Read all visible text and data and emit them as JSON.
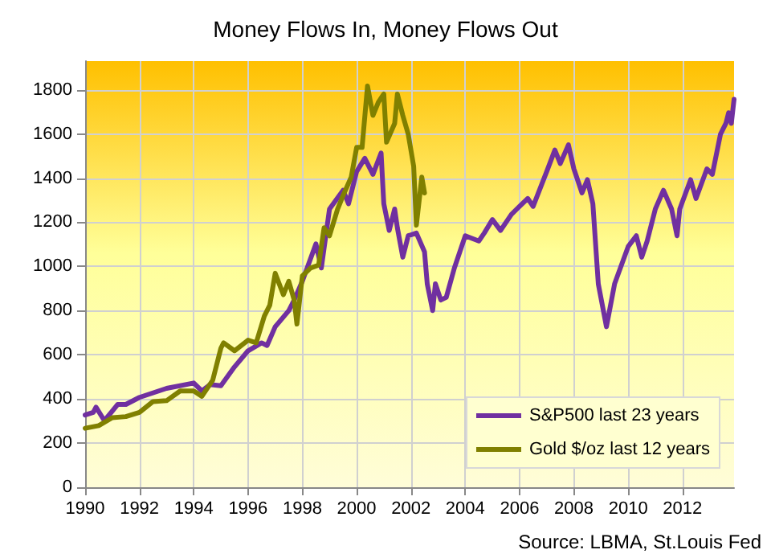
{
  "chart_data": {
    "type": "line",
    "title": "Money Flows In, Money Flows Out",
    "annotations": [
      "Source: LBMA, St.Louis Fed"
    ],
    "xlim": [
      1990,
      2013.9
    ],
    "xticks": [
      1990,
      1992,
      1994,
      1996,
      1998,
      2000,
      2002,
      2004,
      2006,
      2008,
      2010,
      2012
    ],
    "ylim": [
      0,
      1930
    ],
    "yticks": [
      0,
      200,
      400,
      600,
      800,
      1000,
      1200,
      1400,
      1600,
      1800
    ],
    "grid": true,
    "legend": "bottom right",
    "marker": "none",
    "line_style": "solid",
    "series": [
      {
        "name": "S&P500 last 23 years",
        "color": "#7030a0",
        "x": [
          1990.0,
          1990.3,
          1990.4,
          1990.7,
          1990.8,
          1991.2,
          1991.5,
          1992.0,
          1993.0,
          1994.0,
          1994.3,
          1994.6,
          1995.0,
          1995.5,
          1996.0,
          1996.5,
          1996.7,
          1997.0,
          1997.5,
          1997.7,
          1998.0,
          1998.5,
          1998.7,
          1999.0,
          1999.5,
          1999.7,
          2000.0,
          2000.3,
          2000.6,
          2000.9,
          2001.0,
          2001.2,
          2001.4,
          2001.5,
          2001.7,
          2001.9,
          2002.2,
          2002.5,
          2002.6,
          2002.8,
          2002.9,
          2003.1,
          2003.3,
          2003.6,
          2004.0,
          2004.5,
          2004.7,
          2005.0,
          2005.3,
          2005.7,
          2006.0,
          2006.3,
          2006.5,
          2007.0,
          2007.3,
          2007.5,
          2007.8,
          2008.0,
          2008.3,
          2008.5,
          2008.7,
          2008.9,
          2009.2,
          2009.5,
          2010.0,
          2010.3,
          2010.5,
          2010.7,
          2011.0,
          2011.3,
          2011.6,
          2011.8,
          2011.9,
          2012.3,
          2012.5,
          2012.9,
          2013.1,
          2013.4,
          2013.6,
          2013.7,
          2013.8,
          2013.9
        ],
        "values": [
          327,
          339,
          363,
          303,
          315,
          375,
          375,
          407,
          448,
          472,
          436,
          465,
          460,
          545,
          618,
          654,
          642,
          727,
          800,
          848,
          933,
          1102,
          993,
          1260,
          1345,
          1284,
          1430,
          1490,
          1417,
          1514,
          1284,
          1163,
          1260,
          1175,
          1042,
          1139,
          1151,
          1066,
          921,
          800,
          921,
          848,
          860,
          993,
          1139,
          1115,
          1151,
          1212,
          1163,
          1236,
          1272,
          1308,
          1272,
          1430,
          1527,
          1466,
          1551,
          1442,
          1333,
          1393,
          1284,
          921,
          727,
          921,
          1090,
          1139,
          1042,
          1115,
          1260,
          1345,
          1260,
          1139,
          1260,
          1393,
          1308,
          1442,
          1417,
          1599,
          1648,
          1696,
          1648,
          1757
        ]
      },
      {
        "name": "Gold $/oz last 12 years",
        "color": "#808000",
        "x": [
          1990.0,
          1990.5,
          1991.0,
          1991.5,
          1992.0,
          1992.5,
          1993.0,
          1993.5,
          1994.0,
          1994.3,
          1994.7,
          1995.0,
          1995.1,
          1995.5,
          1996.0,
          1996.3,
          1996.6,
          1996.8,
          1997.0,
          1997.3,
          1997.5,
          1997.7,
          1997.8,
          1998.0,
          1998.3,
          1998.6,
          1998.8,
          1999.0,
          1999.3,
          1999.5,
          1999.8,
          2000.0,
          2000.2,
          2000.4,
          2000.6,
          2000.8,
          2001.0,
          2001.1,
          2001.4,
          2001.5,
          2001.7,
          2001.9,
          2002.1,
          2002.2,
          2002.4,
          2002.5
        ],
        "values": [
          267,
          279,
          315,
          320,
          339,
          388,
          392,
          436,
          436,
          412,
          485,
          630,
          654,
          618,
          666,
          654,
          775,
          824,
          969,
          872,
          933,
          848,
          739,
          957,
          993,
          1006,
          1175,
          1139,
          1260,
          1321,
          1405,
          1539,
          1539,
          1817,
          1684,
          1744,
          1781,
          1563,
          1648,
          1781,
          1684,
          1599,
          1454,
          1187,
          1405,
          1333
        ]
      }
    ]
  }
}
